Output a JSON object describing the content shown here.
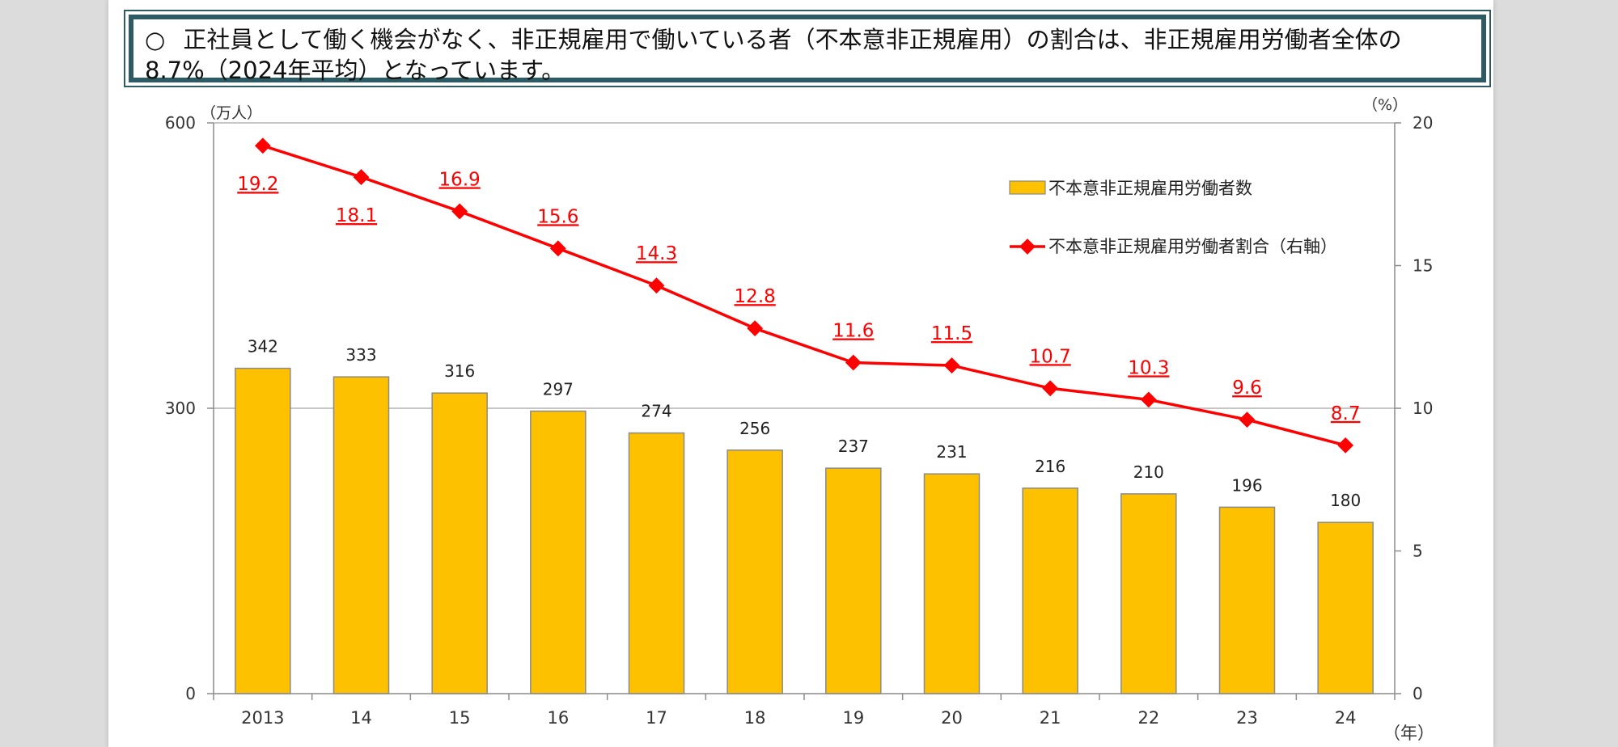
{
  "headline": {
    "bullet": "○",
    "text": "正社員として働く機会がなく、非正規雇用で働いている者（不本意非正規雇用）の割合は、非正規雇用労働者全体の8.7%（2024年平均）となっています。"
  },
  "chart_data": {
    "type": "bar",
    "categories": [
      "2013",
      "14",
      "15",
      "16",
      "17",
      "18",
      "19",
      "20",
      "21",
      "22",
      "23",
      "24"
    ],
    "series": [
      {
        "name": "不本意非正規雇用労働者数",
        "type": "bar",
        "axis": "left",
        "values": [
          342,
          333,
          316,
          297,
          274,
          256,
          237,
          231,
          216,
          210,
          196,
          180
        ],
        "color": "#fec100"
      },
      {
        "name": "不本意非正規雇用労働者割合（右軸）",
        "type": "line",
        "axis": "right",
        "values": [
          19.2,
          18.1,
          16.9,
          15.6,
          14.3,
          12.8,
          11.6,
          11.5,
          10.7,
          10.3,
          9.6,
          8.7
        ],
        "color": "#ff0000"
      }
    ],
    "y_left": {
      "unit": "（万人）",
      "ylim": [
        0,
        600
      ],
      "ticks": [
        "0",
        "300",
        "600"
      ]
    },
    "y_right": {
      "unit": "（%）",
      "ylim": [
        0,
        20
      ],
      "ticks": [
        "0",
        "5",
        "10",
        "15",
        "20"
      ]
    },
    "xlabel": "（年）",
    "legend_position": "top-right",
    "grid": true
  },
  "colors": {
    "bar": "#fec100",
    "bar_border": "#8a8a8a",
    "line": "#ff0000",
    "axis": "#8c8c8c",
    "headline_border": "#2e5a64"
  }
}
